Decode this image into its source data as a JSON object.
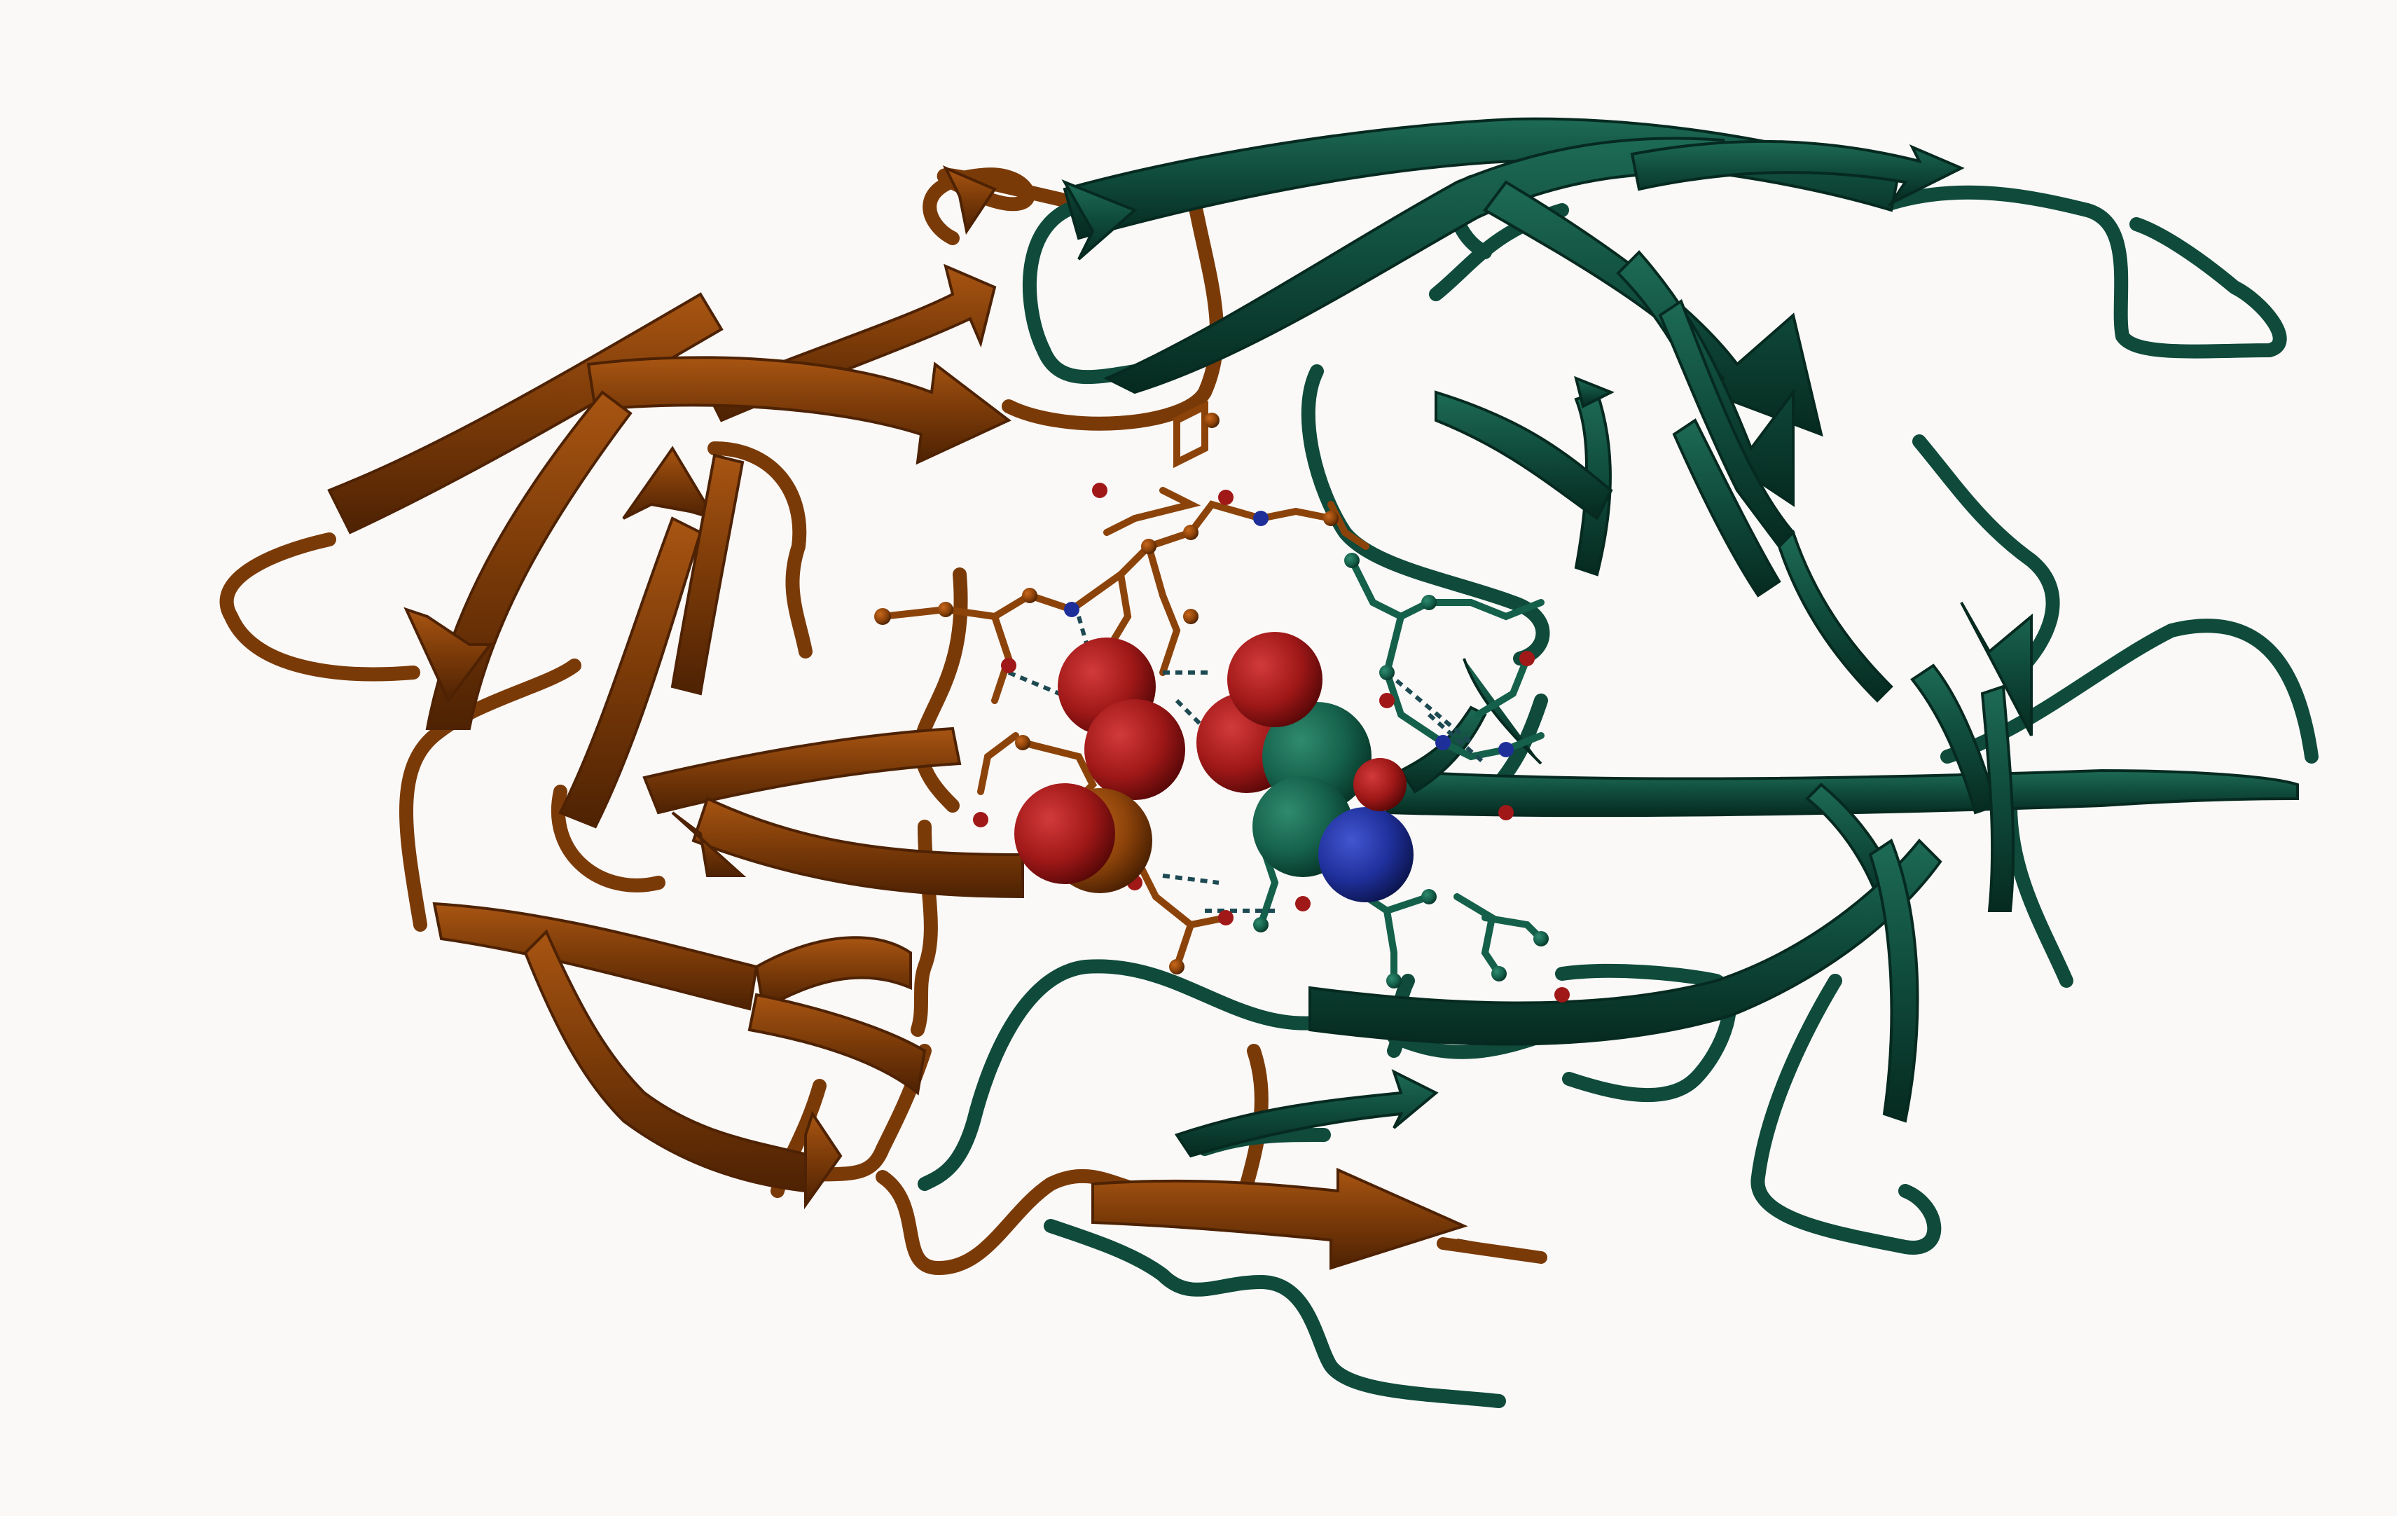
{
  "scene": {
    "background": "#faf9f7",
    "chain_a_color": "#7a3a08",
    "chain_a_highlight": "#a85512",
    "chain_b_color": "#0f4a3a",
    "chain_b_highlight": "#1d6b55",
    "oxygen_color": "#a01818",
    "nitrogen_color": "#1f2f9a",
    "hbond_color": "#1d4a52"
  }
}
